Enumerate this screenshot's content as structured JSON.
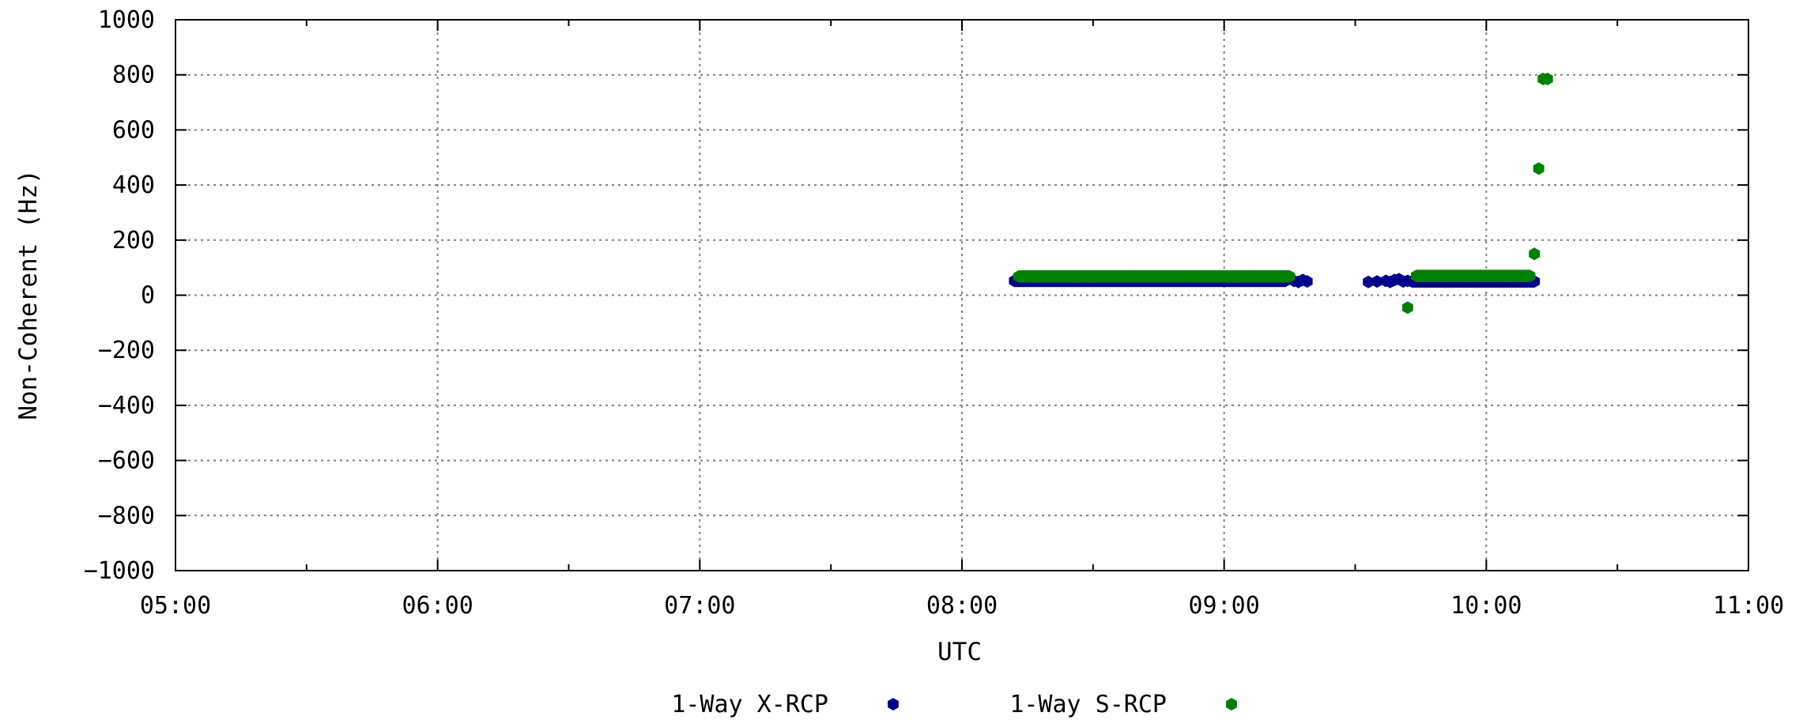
{
  "chart_data": {
    "type": "scatter",
    "xlabel": "UTC",
    "ylabel": "Non-Coherent (Hz)",
    "xlim": [
      "05:00",
      "11:00"
    ],
    "ylim": [
      -1000,
      1000
    ],
    "x_ticks": [
      "05:00",
      "06:00",
      "07:00",
      "08:00",
      "09:00",
      "10:00",
      "11:00"
    ],
    "y_ticks": [
      1000,
      800,
      600,
      400,
      200,
      0,
      -200,
      -400,
      -600,
      -800,
      -1000
    ],
    "grid": true,
    "legend_position": "bottom-center",
    "series": [
      {
        "name": "1-Way X-RCP",
        "color": "#00008b",
        "marker": "hexagon",
        "segments": [
          {
            "x_start": "08:12",
            "x_end": "09:14",
            "x_step_min": 0.25,
            "y": 52
          }
        ],
        "points": [
          {
            "x": "09:16",
            "y": 52
          },
          {
            "x": "09:17",
            "y": 48
          },
          {
            "x": "09:18",
            "y": 55
          },
          {
            "x": "09:19",
            "y": 50
          },
          {
            "x": "09:33",
            "y": 48
          },
          {
            "x": "09:35",
            "y": 50
          },
          {
            "x": "09:37",
            "y": 52
          },
          {
            "x": "09:38",
            "y": 48
          },
          {
            "x": "09:39",
            "y": 55
          },
          {
            "x": "09:40",
            "y": 58
          },
          {
            "x": "09:41",
            "y": 50
          },
          {
            "x": "09:42",
            "y": 52
          }
        ],
        "segments_2": [
          {
            "x_start": "09:43",
            "x_end": "10:11",
            "x_step_min": 0.25,
            "y": 50
          }
        ]
      },
      {
        "name": "1-Way S-RCP",
        "color": "#008000",
        "marker": "hexagon",
        "segments": [
          {
            "x_start": "08:13",
            "x_end": "09:15",
            "x_step_min": 0.25,
            "y": 68
          },
          {
            "x_start": "09:44",
            "x_end": "10:10",
            "x_step_min": 0.25,
            "y": 70
          }
        ],
        "points": [
          {
            "x": "09:42",
            "y": -45
          },
          {
            "x": "10:11",
            "y": 150
          },
          {
            "x": "10:12",
            "y": 460
          },
          {
            "x": "10:13",
            "y": 785
          },
          {
            "x": "10:14",
            "y": 785
          }
        ]
      }
    ]
  }
}
